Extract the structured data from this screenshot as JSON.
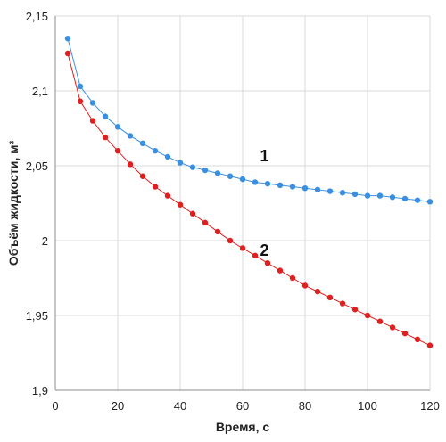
{
  "chart_data": {
    "type": "line",
    "xlabel": "Время, с",
    "ylabel": "Объём жидкости, м³",
    "xlim": [
      0,
      120
    ],
    "ylim": [
      1.9,
      2.15
    ],
    "x_ticks": [
      0,
      20,
      40,
      60,
      80,
      100,
      120
    ],
    "y_ticks": [
      1.9,
      1.95,
      2.0,
      2.05,
      2.1,
      2.15
    ],
    "x_tick_labels": [
      "0",
      "20",
      "40",
      "60",
      "80",
      "100",
      "120"
    ],
    "y_tick_labels": [
      "1,9",
      "1,95",
      "2",
      "2,05",
      "2,1",
      "2,15"
    ],
    "grid": true,
    "series": [
      {
        "name": "1",
        "color": "#3a8fe0",
        "x": [
          4,
          8,
          12,
          16,
          20,
          24,
          28,
          32,
          36,
          40,
          44,
          48,
          52,
          56,
          60,
          64,
          68,
          72,
          76,
          80,
          84,
          88,
          92,
          96,
          100,
          104,
          108,
          112,
          116,
          120
        ],
        "values": [
          2.135,
          2.103,
          2.092,
          2.083,
          2.076,
          2.07,
          2.065,
          2.06,
          2.056,
          2.052,
          2.049,
          2.047,
          2.045,
          2.043,
          2.041,
          2.039,
          2.038,
          2.037,
          2.036,
          2.035,
          2.034,
          2.033,
          2.032,
          2.031,
          2.03,
          2.03,
          2.029,
          2.028,
          2.027,
          2.026
        ]
      },
      {
        "name": "2",
        "color": "#e01f1f",
        "x": [
          4,
          8,
          12,
          16,
          20,
          24,
          28,
          32,
          36,
          40,
          44,
          48,
          52,
          56,
          60,
          64,
          68,
          72,
          76,
          80,
          84,
          88,
          92,
          96,
          100,
          104,
          108,
          112,
          116,
          120
        ],
        "values": [
          2.125,
          2.093,
          2.08,
          2.069,
          2.06,
          2.051,
          2.043,
          2.036,
          2.03,
          2.024,
          2.018,
          2.012,
          2.006,
          2.0,
          1.995,
          1.99,
          1.985,
          1.98,
          1.975,
          1.97,
          1.966,
          1.962,
          1.958,
          1.954,
          1.95,
          1.946,
          1.942,
          1.938,
          1.934,
          1.93
        ]
      }
    ],
    "annotations": [
      {
        "text": "1",
        "x": 67,
        "y": 2.053
      },
      {
        "text": "2",
        "x": 67,
        "y": 1.99
      }
    ]
  }
}
